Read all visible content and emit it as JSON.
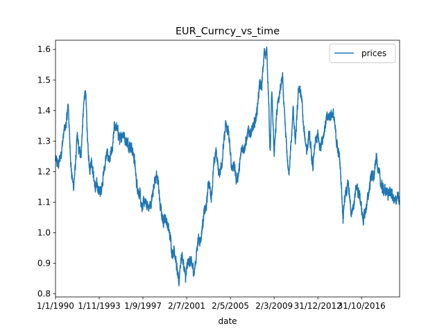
{
  "chart_data": {
    "type": "line",
    "title": "EUR_Curncy_vs_time",
    "xlabel": "date",
    "ylabel": "",
    "ylim": [
      0.79,
      1.63
    ],
    "xlim": [
      "1990-01-01",
      "2020-03-01"
    ],
    "x_ticks": [
      {
        "date": "1990-01-01",
        "label": "1/1/1990"
      },
      {
        "date": "1993-11-01",
        "label": "1/11/1993"
      },
      {
        "date": "1997-09-01",
        "label": "1/9/1997"
      },
      {
        "date": "2001-07-02",
        "label": "2/7/2001"
      },
      {
        "date": "2005-05-02",
        "label": "2/5/2005"
      },
      {
        "date": "2009-03-02",
        "label": "2/3/2009"
      },
      {
        "date": "2012-12-31",
        "label": "31/12/2012"
      },
      {
        "date": "2016-10-31",
        "label": "31/10/2016"
      }
    ],
    "y_ticks": [
      0.8,
      0.9,
      1.0,
      1.1,
      1.2,
      1.3,
      1.4,
      1.5,
      1.6
    ],
    "legend": {
      "position": "top-right"
    },
    "grid": false,
    "series": [
      {
        "name": "prices",
        "color": "#1f77b4",
        "points": [
          [
            "1990-01-01",
            1.24
          ],
          [
            "1990-04-01",
            1.22
          ],
          [
            "1990-07-01",
            1.26
          ],
          [
            "1990-10-01",
            1.33
          ],
          [
            "1990-12-15",
            1.36
          ],
          [
            "1991-02-15",
            1.42
          ],
          [
            "1991-04-01",
            1.3
          ],
          [
            "1991-06-01",
            1.19
          ],
          [
            "1991-08-01",
            1.15
          ],
          [
            "1991-10-01",
            1.22
          ],
          [
            "1991-12-01",
            1.32
          ],
          [
            "1992-01-15",
            1.27
          ],
          [
            "1992-04-01",
            1.26
          ],
          [
            "1992-06-01",
            1.38
          ],
          [
            "1992-08-01",
            1.47
          ],
          [
            "1992-09-15",
            1.41
          ],
          [
            "1992-11-01",
            1.28
          ],
          [
            "1993-01-01",
            1.21
          ],
          [
            "1993-03-01",
            1.24
          ],
          [
            "1993-05-01",
            1.19
          ],
          [
            "1993-07-01",
            1.14
          ],
          [
            "1993-09-01",
            1.16
          ],
          [
            "1993-11-01",
            1.13
          ],
          [
            "1994-01-01",
            1.14
          ],
          [
            "1994-04-01",
            1.2
          ],
          [
            "1994-07-01",
            1.26
          ],
          [
            "1994-10-01",
            1.24
          ],
          [
            "1995-01-01",
            1.27
          ],
          [
            "1995-03-01",
            1.35
          ],
          [
            "1995-06-01",
            1.34
          ],
          [
            "1995-09-01",
            1.3
          ],
          [
            "1995-12-01",
            1.33
          ],
          [
            "1996-03-01",
            1.3
          ],
          [
            "1996-06-01",
            1.29
          ],
          [
            "1996-09-01",
            1.28
          ],
          [
            "1996-12-01",
            1.24
          ],
          [
            "1997-02-01",
            1.17
          ],
          [
            "1997-04-01",
            1.14
          ],
          [
            "1997-06-01",
            1.12
          ],
          [
            "1997-08-01",
            1.07
          ],
          [
            "1997-10-01",
            1.11
          ],
          [
            "1997-12-01",
            1.1
          ],
          [
            "1998-03-01",
            1.08
          ],
          [
            "1998-06-01",
            1.1
          ],
          [
            "1998-09-01",
            1.17
          ],
          [
            "1998-11-01",
            1.18
          ],
          [
            "1999-01-01",
            1.17
          ],
          [
            "1999-03-01",
            1.09
          ],
          [
            "1999-06-01",
            1.04
          ],
          [
            "1999-09-01",
            1.05
          ],
          [
            "1999-12-01",
            1.01
          ],
          [
            "2000-02-01",
            0.98
          ],
          [
            "2000-04-01",
            0.93
          ],
          [
            "2000-06-01",
            0.95
          ],
          [
            "2000-08-01",
            0.9
          ],
          [
            "2000-10-25",
            0.83
          ],
          [
            "2000-12-01",
            0.89
          ],
          [
            "2001-02-01",
            0.93
          ],
          [
            "2001-04-01",
            0.89
          ],
          [
            "2001-06-01",
            0.85
          ],
          [
            "2001-08-01",
            0.9
          ],
          [
            "2001-10-01",
            0.91
          ],
          [
            "2002-01-01",
            0.89
          ],
          [
            "2002-03-01",
            0.87
          ],
          [
            "2002-05-01",
            0.92
          ],
          [
            "2002-07-01",
            0.98
          ],
          [
            "2002-10-01",
            0.98
          ],
          [
            "2003-01-01",
            1.06
          ],
          [
            "2003-04-01",
            1.09
          ],
          [
            "2003-06-01",
            1.17
          ],
          [
            "2003-09-01",
            1.12
          ],
          [
            "2003-12-01",
            1.23
          ],
          [
            "2004-02-01",
            1.27
          ],
          [
            "2004-05-01",
            1.19
          ],
          [
            "2004-08-01",
            1.23
          ],
          [
            "2004-12-01",
            1.35
          ],
          [
            "2005-03-01",
            1.33
          ],
          [
            "2005-06-01",
            1.22
          ],
          [
            "2005-09-01",
            1.22
          ],
          [
            "2005-11-15",
            1.17
          ],
          [
            "2006-02-01",
            1.2
          ],
          [
            "2006-05-01",
            1.28
          ],
          [
            "2006-08-01",
            1.28
          ],
          [
            "2006-12-01",
            1.33
          ],
          [
            "2007-03-01",
            1.33
          ],
          [
            "2007-06-01",
            1.35
          ],
          [
            "2007-09-01",
            1.4
          ],
          [
            "2007-11-15",
            1.48
          ],
          [
            "2008-02-01",
            1.48
          ],
          [
            "2008-04-20",
            1.59
          ],
          [
            "2008-07-15",
            1.59
          ],
          [
            "2008-09-01",
            1.45
          ],
          [
            "2008-10-27",
            1.25
          ],
          [
            "2008-12-18",
            1.47
          ],
          [
            "2009-03-01",
            1.26
          ],
          [
            "2009-06-01",
            1.4
          ],
          [
            "2009-09-01",
            1.46
          ],
          [
            "2009-11-25",
            1.51
          ],
          [
            "2010-02-01",
            1.37
          ],
          [
            "2010-06-07",
            1.19
          ],
          [
            "2010-09-01",
            1.29
          ],
          [
            "2010-11-01",
            1.41
          ],
          [
            "2011-01-10",
            1.29
          ],
          [
            "2011-05-01",
            1.48
          ],
          [
            "2011-08-01",
            1.44
          ],
          [
            "2011-10-01",
            1.34
          ],
          [
            "2012-01-15",
            1.27
          ],
          [
            "2012-04-01",
            1.32
          ],
          [
            "2012-07-24",
            1.21
          ],
          [
            "2012-10-01",
            1.29
          ],
          [
            "2013-01-01",
            1.32
          ],
          [
            "2013-03-01",
            1.28
          ],
          [
            "2013-06-01",
            1.31
          ],
          [
            "2013-10-01",
            1.37
          ],
          [
            "2014-03-15",
            1.39
          ],
          [
            "2014-05-08",
            1.39
          ],
          [
            "2014-09-01",
            1.29
          ],
          [
            "2014-12-01",
            1.24
          ],
          [
            "2015-01-20",
            1.16
          ],
          [
            "2015-03-16",
            1.05
          ],
          [
            "2015-05-01",
            1.11
          ],
          [
            "2015-08-24",
            1.16
          ],
          [
            "2015-11-01",
            1.1
          ],
          [
            "2015-12-01",
            1.06
          ],
          [
            "2016-03-01",
            1.1
          ],
          [
            "2016-05-01",
            1.15
          ],
          [
            "2016-09-01",
            1.12
          ],
          [
            "2016-12-20",
            1.04
          ],
          [
            "2017-03-01",
            1.07
          ],
          [
            "2017-06-01",
            1.12
          ],
          [
            "2017-09-01",
            1.19
          ],
          [
            "2017-12-01",
            1.18
          ],
          [
            "2018-02-15",
            1.25
          ],
          [
            "2018-05-01",
            1.2
          ],
          [
            "2018-08-01",
            1.15
          ],
          [
            "2018-11-01",
            1.14
          ],
          [
            "2019-03-01",
            1.13
          ],
          [
            "2019-06-01",
            1.13
          ],
          [
            "2019-10-01",
            1.1
          ],
          [
            "2020-01-01",
            1.12
          ],
          [
            "2020-03-01",
            1.09
          ]
        ]
      }
    ]
  }
}
